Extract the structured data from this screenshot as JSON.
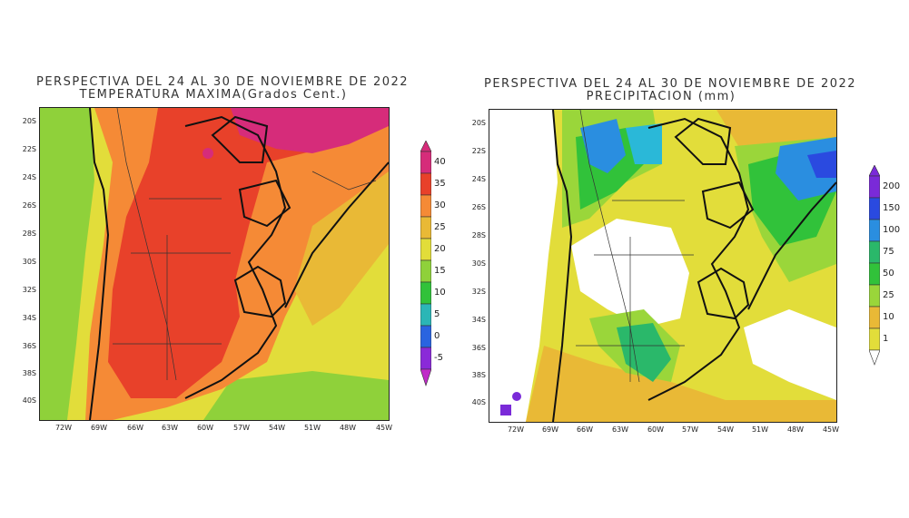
{
  "left": {
    "title_line1": "PERSPECTIVA DEL 24 AL 30 DE NOVIEMBRE DE 2022",
    "title_line2": "TEMPERATURA MAXIMA(Grados Cent.)",
    "lat_ticks": [
      "20S",
      "22S",
      "24S",
      "26S",
      "28S",
      "30S",
      "32S",
      "34S",
      "36S",
      "38S",
      "40S"
    ],
    "lon_ticks": [
      "72W",
      "69W",
      "66W",
      "63W",
      "60W",
      "57W",
      "54W",
      "51W",
      "48W",
      "45W"
    ],
    "colorbar": {
      "labels": [
        "40",
        "35",
        "30",
        "25",
        "20",
        "15",
        "10",
        "5",
        "0",
        "-5"
      ],
      "colors": [
        "#d62c7a",
        "#e8412a",
        "#f58a36",
        "#e9b936",
        "#e2dd3a",
        "#8fd13a",
        "#31c23a",
        "#2bb6b6",
        "#2a64e0",
        "#8a2ad8",
        "#c02ac8"
      ]
    }
  },
  "right": {
    "title_line1": "PERSPECTIVA DEL 24 AL 30 DE NOVIEMBRE DE 2022",
    "title_line2": "PRECIPITACION (mm)",
    "lat_ticks": [
      "20S",
      "22S",
      "24S",
      "26S",
      "28S",
      "30S",
      "32S",
      "34S",
      "36S",
      "38S",
      "40S"
    ],
    "lon_ticks": [
      "72W",
      "69W",
      "66W",
      "63W",
      "60W",
      "57W",
      "54W",
      "51W",
      "48W",
      "45W"
    ],
    "colorbar": {
      "labels": [
        "200",
        "150",
        "100",
        "75",
        "50",
        "25",
        "10",
        "1"
      ],
      "colors": [
        "#7a2ad8",
        "#2a4ae0",
        "#2a8ee0",
        "#2ab8d8",
        "#2ab86a",
        "#31c23a",
        "#9ad63a",
        "#e9b936",
        "#e2dd3a",
        "#ffffff"
      ]
    }
  }
}
